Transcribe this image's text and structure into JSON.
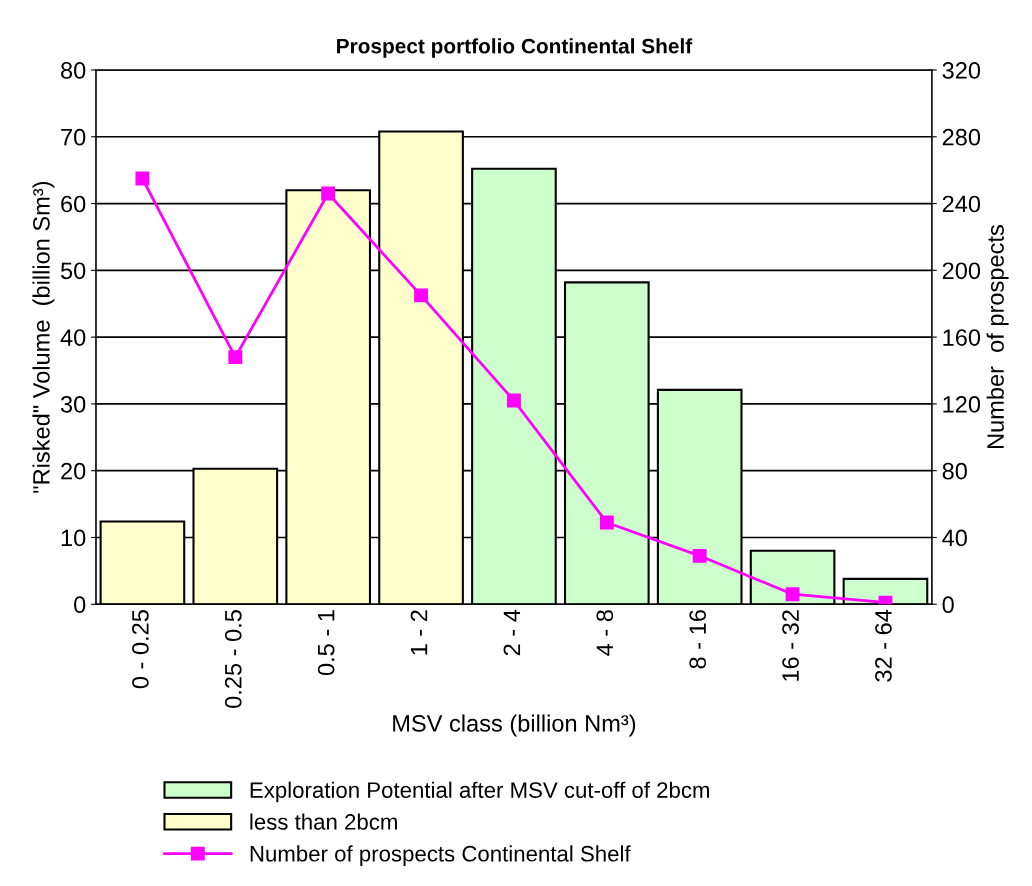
{
  "chart_data": {
    "type": "bar",
    "title": "Prospect portfolio Continental Shelf",
    "xlabel": "MSV class (billion Nm³)",
    "ylabel": "\"Risked\" Volume  (billion Sm³)",
    "y2label": "Number  of prospects",
    "categories": [
      "0 - 0.25",
      "0.25 - 0.5",
      "0.5 - 1",
      "1 - 2",
      "2 - 4",
      "4 - 8",
      "8 - 16",
      "16 - 32",
      "32 - 64"
    ],
    "stacked": true,
    "series": [
      {
        "name": "Exploration Potential after MSV cut-off of 2bcm",
        "color": "#ccffcc",
        "values": [
          null,
          null,
          null,
          null,
          65.2,
          48.2,
          32.1,
          8.0,
          3.8
        ]
      },
      {
        "name": "less than 2bcm",
        "color": "#ffffcc",
        "values": [
          12.4,
          20.3,
          62.0,
          70.8,
          null,
          null,
          null,
          null,
          null
        ]
      },
      {
        "name": "Number of prospects Continental Shelf",
        "type": "line",
        "axis": "y2",
        "color": "#ff00ff",
        "marker": "square",
        "values": [
          255,
          148,
          246,
          185,
          122,
          49,
          29,
          6,
          1
        ]
      }
    ],
    "ylim": [
      0,
      80
    ],
    "yticks": [
      0,
      10,
      20,
      30,
      40,
      50,
      60,
      70,
      80
    ],
    "y2lim": [
      0,
      320
    ],
    "y2ticks": [
      0,
      40,
      80,
      120,
      160,
      200,
      240,
      280,
      320
    ],
    "grid": "y",
    "legend": "bottom"
  }
}
